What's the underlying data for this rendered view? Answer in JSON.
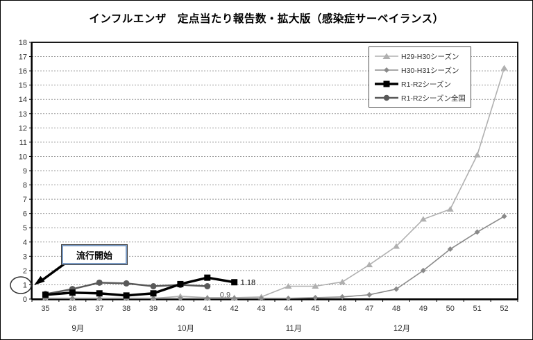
{
  "chart_data": {
    "type": "line",
    "title": "インフルエンザ　定点当たり報告数・拡大版（感染症サーベイランス）",
    "x": [
      35,
      36,
      37,
      38,
      39,
      40,
      41,
      42,
      43,
      44,
      45,
      46,
      47,
      48,
      49,
      50,
      51,
      52
    ],
    "xlabel": "",
    "ylabel": "",
    "ylim": [
      0,
      18
    ],
    "ytick_step": 1,
    "grid": "horizontal-dashed",
    "legend_position": "top-right",
    "months": [
      {
        "label": "9月",
        "under_week": 36
      },
      {
        "label": "10月",
        "under_week": 40
      },
      {
        "label": "11月",
        "under_week": 44
      },
      {
        "label": "12月",
        "under_week": 48
      }
    ],
    "series": [
      {
        "name": "H29-H30シーズン",
        "marker": "triangle",
        "color": "#b0b0b0",
        "line_width": 1.6,
        "values": [
          0.05,
          0.05,
          0.05,
          0.05,
          0.05,
          0.2,
          0.1,
          0.1,
          0.15,
          0.9,
          0.9,
          1.2,
          2.4,
          3.7,
          5.6,
          6.3,
          10.1,
          16.2
        ]
      },
      {
        "name": "H30-H31シーズン",
        "marker": "diamond",
        "color": "#8a8a8a",
        "line_width": 1.6,
        "values": [
          0.05,
          0.05,
          0.05,
          0.05,
          0.05,
          0.05,
          0.05,
          0.05,
          0.05,
          0.05,
          0.1,
          0.15,
          0.3,
          0.7,
          2.0,
          3.5,
          4.7,
          5.8
        ]
      },
      {
        "name": "R1-R2シーズン",
        "marker": "square",
        "color": "#000000",
        "line_width": 3.5,
        "values": [
          0.3,
          0.45,
          0.4,
          0.25,
          0.4,
          1.05,
          1.5,
          1.18,
          null,
          null,
          null,
          null,
          null,
          null,
          null,
          null,
          null,
          null
        ]
      },
      {
        "name": "R1-R2シーズン全国",
        "marker": "circle",
        "color": "#595959",
        "line_width": 2.5,
        "values": [
          0.35,
          0.7,
          1.15,
          1.1,
          0.9,
          1.0,
          0.9,
          null,
          null,
          null,
          null,
          null,
          null,
          null,
          null,
          null,
          null,
          null
        ]
      }
    ],
    "point_labels": [
      {
        "text": "1.18",
        "week": 42,
        "value": 1.18,
        "color": "#000000"
      },
      {
        "text": "0.9",
        "week": 41,
        "value": 0.9,
        "color": "#595959"
      }
    ]
  },
  "annotation": {
    "label": "流行開始"
  }
}
